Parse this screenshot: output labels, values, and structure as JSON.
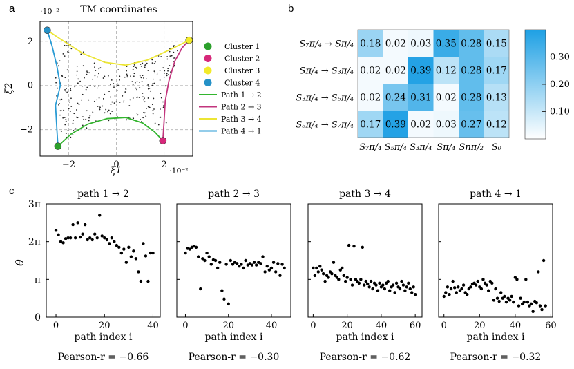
{
  "panels": {
    "a": "a",
    "b": "b",
    "c": "c"
  },
  "chart_data": [
    {
      "id": "panel-a",
      "type": "scatter",
      "title": "TM coordinates",
      "xlabel": "ξ1",
      "ylabel": "ξ2",
      "x_exponent": "·10⁻²",
      "y_exponent": "·10⁻²",
      "xlim": [
        -3.2,
        3.2
      ],
      "ylim": [
        -3.2,
        2.9
      ],
      "xticks": [
        {
          "v": -2,
          "label": "−2"
        },
        {
          "v": 0,
          "label": "0"
        },
        {
          "v": 2,
          "label": "2"
        }
      ],
      "yticks": [
        {
          "v": -2,
          "label": "−2"
        },
        {
          "v": 0,
          "label": "0"
        },
        {
          "v": 2,
          "label": "2"
        }
      ],
      "grid": true,
      "clusters": [
        {
          "name": "Cluster 1",
          "x": -2.45,
          "y": -2.75,
          "color": "#2ca02c"
        },
        {
          "name": "Cluster 2",
          "x": 1.95,
          "y": -2.5,
          "color": "#d6287a"
        },
        {
          "name": "Cluster 3",
          "x": 3.05,
          "y": 2.05,
          "color": "#f2ea2a"
        },
        {
          "name": "Cluster 4",
          "x": -2.9,
          "y": 2.5,
          "color": "#2591c7"
        }
      ],
      "paths": [
        {
          "name": "Path 1 → 2",
          "color": "#33b52f",
          "points": [
            [
              -2.45,
              -2.75
            ],
            [
              -1.9,
              -2.2
            ],
            [
              -1.2,
              -1.75
            ],
            [
              -0.4,
              -1.5
            ],
            [
              0.4,
              -1.45
            ],
            [
              1.1,
              -1.7
            ],
            [
              1.6,
              -2.1
            ],
            [
              1.95,
              -2.5
            ]
          ]
        },
        {
          "name": "Path 2 → 3",
          "color": "#c2357d",
          "points": [
            [
              1.95,
              -2.5
            ],
            [
              2.0,
              -1.6
            ],
            [
              2.05,
              -0.7
            ],
            [
              2.2,
              0.2
            ],
            [
              2.45,
              1.1
            ],
            [
              2.75,
              1.7
            ],
            [
              3.05,
              2.05
            ]
          ]
        },
        {
          "name": "Path 3 → 4",
          "color": "#ece534",
          "points": [
            [
              3.05,
              2.05
            ],
            [
              2.2,
              1.6
            ],
            [
              1.3,
              1.15
            ],
            [
              0.4,
              0.92
            ],
            [
              -0.5,
              1.05
            ],
            [
              -1.4,
              1.45
            ],
            [
              -2.2,
              2.0
            ],
            [
              -2.9,
              2.5
            ]
          ]
        },
        {
          "name": "Path 4 → 1",
          "color": "#2a9bd4",
          "points": [
            [
              -2.9,
              2.5
            ],
            [
              -2.7,
              1.8
            ],
            [
              -2.5,
              0.9
            ],
            [
              -2.35,
              0.0
            ],
            [
              -2.55,
              -0.9
            ],
            [
              -2.5,
              -1.9
            ],
            [
              -2.45,
              -2.75
            ]
          ]
        }
      ]
    },
    {
      "id": "panel-b",
      "type": "heatmap",
      "rows": [
        "S₇π/₄ → Sπ/₄",
        "Sπ/₄ → S₃π/₄",
        "S₃π/₄ → S₅π/₄",
        "S₅π/₄ → S₇π/₄"
      ],
      "columns": [
        "S₇π/₄",
        "S₅π/₄",
        "S₃π/₄",
        "Sπ/₄",
        "Snπ/₂",
        "S₀"
      ],
      "values": [
        [
          0.18,
          0.02,
          0.03,
          0.35,
          0.28,
          0.15
        ],
        [
          0.02,
          0.02,
          0.39,
          0.12,
          0.28,
          0.17
        ],
        [
          0.02,
          0.24,
          0.31,
          0.02,
          0.28,
          0.13
        ],
        [
          0.17,
          0.39,
          0.02,
          0.03,
          0.27,
          0.12
        ]
      ],
      "labels": [
        [
          "0.18",
          "0.02",
          "0.03",
          "0.35",
          "0.28",
          "0.15"
        ],
        [
          "0.02",
          "0.02",
          "0.39",
          "0.12",
          "0.28",
          "0.17"
        ],
        [
          "0.02",
          "0.24",
          "0.31",
          "0.02",
          "0.28",
          "0.13"
        ],
        [
          "0.17",
          "0.39",
          "0.02",
          "0.03",
          "0.27",
          "0.12"
        ]
      ],
      "colorbar": {
        "min": 0.0,
        "max": 0.4,
        "ticks": [
          {
            "v": 0.1,
            "label": "0.10"
          },
          {
            "v": 0.2,
            "label": "0.20"
          },
          {
            "v": 0.3,
            "label": "0.30"
          }
        ]
      }
    },
    {
      "id": "panel-c1",
      "type": "scatter",
      "title": "path 1 → 2",
      "xlabel": "path index i",
      "ylabel": "θ",
      "ylim": [
        0,
        3
      ],
      "xlim": [
        -4,
        43
      ],
      "xticks": [
        {
          "v": 0,
          "label": "0"
        },
        {
          "v": 20,
          "label": "20"
        },
        {
          "v": 40,
          "label": "40"
        }
      ],
      "caption": "Pearson-r = −0.66",
      "x": [
        0,
        1,
        2,
        3,
        4,
        5,
        6,
        7,
        8,
        9,
        10,
        11,
        12,
        13,
        14,
        15,
        16,
        17,
        18,
        19,
        20,
        21,
        22,
        23,
        24,
        25,
        26,
        27,
        28,
        29,
        30,
        31,
        32,
        33,
        34,
        35,
        36,
        37,
        38,
        39,
        40
      ],
      "y": [
        2.3,
        2.18,
        2.0,
        1.97,
        2.08,
        2.1,
        2.1,
        2.45,
        2.1,
        2.5,
        2.12,
        2.2,
        2.45,
        2.05,
        2.1,
        2.05,
        2.2,
        2.1,
        2.7,
        2.15,
        2.1,
        2.05,
        1.95,
        2.1,
        2.0,
        1.9,
        1.85,
        1.7,
        1.8,
        1.45,
        1.85,
        1.6,
        1.75,
        1.55,
        1.2,
        0.95,
        1.95,
        1.62,
        0.95,
        1.7,
        1.7
      ]
    },
    {
      "id": "panel-c2",
      "type": "scatter",
      "title": "path 2 → 3",
      "xlabel": "path index i",
      "ylabel": "",
      "ylim": [
        0,
        3
      ],
      "xlim": [
        -4,
        49
      ],
      "xticks": [
        {
          "v": 0,
          "label": "0"
        },
        {
          "v": 20,
          "label": "20"
        },
        {
          "v": 40,
          "label": "40"
        }
      ],
      "caption": "Pearson-r = −0.30",
      "x": [
        0,
        1,
        2,
        3,
        4,
        5,
        6,
        7,
        8,
        9,
        10,
        11,
        12,
        13,
        14,
        15,
        16,
        17,
        18,
        19,
        20,
        21,
        22,
        23,
        24,
        25,
        26,
        27,
        28,
        29,
        30,
        31,
        32,
        33,
        34,
        35,
        36,
        37,
        38,
        39,
        40,
        41,
        42,
        43,
        44,
        45,
        46
      ],
      "y": [
        1.7,
        1.82,
        1.8,
        1.85,
        1.88,
        1.85,
        1.6,
        0.75,
        1.55,
        1.5,
        1.7,
        1.6,
        1.4,
        1.52,
        1.5,
        1.3,
        1.45,
        0.7,
        0.48,
        1.4,
        0.35,
        1.5,
        1.4,
        1.45,
        1.42,
        1.35,
        1.4,
        1.3,
        1.5,
        1.38,
        1.42,
        1.38,
        1.45,
        1.38,
        1.45,
        1.42,
        1.6,
        1.2,
        1.35,
        1.25,
        1.3,
        1.45,
        1.2,
        1.42,
        1.1,
        1.4,
        1.3
      ]
    },
    {
      "id": "panel-c3",
      "type": "scatter",
      "title": "path 3 → 4",
      "xlabel": "path index i",
      "ylabel": "",
      "ylim": [
        0,
        3
      ],
      "xlim": [
        -3,
        64
      ],
      "xticks": [
        {
          "v": 0,
          "label": "0"
        },
        {
          "v": 20,
          "label": "20"
        },
        {
          "v": 40,
          "label": "40"
        },
        {
          "v": 60,
          "label": "60"
        }
      ],
      "caption": "Pearson-r = −0.62",
      "x": [
        0,
        1,
        2,
        3,
        4,
        5,
        6,
        7,
        8,
        9,
        10,
        11,
        12,
        13,
        14,
        15,
        16,
        17,
        18,
        19,
        20,
        21,
        22,
        23,
        24,
        25,
        26,
        27,
        28,
        29,
        30,
        31,
        32,
        33,
        34,
        35,
        36,
        37,
        38,
        39,
        40,
        41,
        42,
        43,
        44,
        45,
        46,
        47,
        48,
        49,
        50,
        51,
        52,
        53,
        54,
        55,
        56,
        57,
        58,
        59,
        60
      ],
      "y": [
        1.3,
        1.1,
        1.3,
        1.2,
        1.35,
        1.25,
        1.15,
        0.95,
        1.1,
        1.05,
        1.2,
        1.15,
        1.45,
        1.1,
        1.05,
        1.0,
        1.25,
        1.3,
        1.1,
        0.95,
        1.05,
        1.9,
        1.0,
        0.85,
        1.88,
        1.0,
        0.95,
        0.9,
        1.0,
        1.85,
        0.85,
        0.95,
        0.88,
        0.8,
        0.95,
        0.75,
        0.9,
        0.85,
        0.7,
        0.9,
        0.8,
        0.85,
        0.75,
        0.9,
        0.95,
        0.7,
        0.8,
        0.85,
        0.65,
        0.9,
        0.8,
        0.75,
        0.95,
        0.85,
        0.7,
        0.8,
        0.9,
        0.75,
        0.65,
        0.8,
        0.6
      ]
    },
    {
      "id": "panel-c4",
      "type": "scatter",
      "title": "path 4 → 1",
      "xlabel": "path index i",
      "ylabel": "",
      "ylim": [
        0,
        3
      ],
      "xlim": [
        -3,
        61
      ],
      "xticks": [
        {
          "v": 0,
          "label": "0"
        },
        {
          "v": 20,
          "label": "20"
        },
        {
          "v": 40,
          "label": "40"
        },
        {
          "v": 60,
          "label": "60"
        }
      ],
      "caption": "Pearson-r = −0.32",
      "x": [
        0,
        1,
        2,
        3,
        4,
        5,
        6,
        7,
        8,
        9,
        10,
        11,
        12,
        13,
        14,
        15,
        16,
        17,
        18,
        19,
        20,
        21,
        22,
        23,
        24,
        25,
        26,
        27,
        28,
        29,
        30,
        31,
        32,
        33,
        34,
        35,
        36,
        37,
        38,
        39,
        40,
        41,
        42,
        43,
        44,
        45,
        46,
        47,
        48,
        49,
        50,
        51,
        52,
        53,
        54,
        55,
        56,
        57
      ],
      "y": [
        0.55,
        0.65,
        0.8,
        0.6,
        0.75,
        0.95,
        0.78,
        0.65,
        0.8,
        0.7,
        0.75,
        0.85,
        0.65,
        0.6,
        0.75,
        0.8,
        0.88,
        0.9,
        0.85,
        0.95,
        0.8,
        0.75,
        1.0,
        0.9,
        0.85,
        0.7,
        0.95,
        0.9,
        0.45,
        0.75,
        0.5,
        0.42,
        0.65,
        0.5,
        0.55,
        0.4,
        0.5,
        0.45,
        0.55,
        0.4,
        1.05,
        1.0,
        0.3,
        0.5,
        0.35,
        0.4,
        1.0,
        0.4,
        0.3,
        0.35,
        0.15,
        0.42,
        0.38,
        1.2,
        0.3,
        0.2,
        1.5,
        0.3
      ]
    }
  ]
}
